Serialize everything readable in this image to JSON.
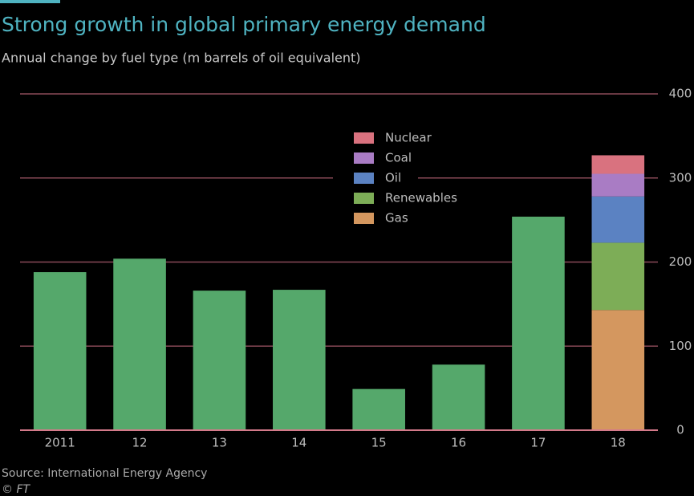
{
  "chart_data": {
    "type": "stacked-bar",
    "title": "Strong growth in global primary energy demand",
    "subtitle": "Annual change by fuel type (m barrels of oil equivalent)",
    "source": "Source: International Energy Agency",
    "credit": "© FT",
    "categories": [
      "2011",
      "12",
      "13",
      "14",
      "15",
      "16",
      "17",
      "18"
    ],
    "values": [
      188,
      204,
      166,
      167,
      49,
      78,
      254,
      null
    ],
    "color": "#55a86b",
    "series": [
      {
        "name": "Gas",
        "color": "#d4975f",
        "values": [
          null,
          null,
          null,
          null,
          null,
          null,
          null,
          143
        ]
      },
      {
        "name": "Renewables",
        "color": "#7dad57",
        "values": [
          null,
          null,
          null,
          null,
          null,
          null,
          null,
          80
        ]
      },
      {
        "name": "Oil",
        "color": "#5b82c2",
        "values": [
          null,
          null,
          null,
          null,
          null,
          null,
          null,
          55
        ]
      },
      {
        "name": "Coal",
        "color": "#a97cc4",
        "values": [
          null,
          null,
          null,
          null,
          null,
          null,
          null,
          27
        ]
      },
      {
        "name": "Nuclear",
        "color": "#d9727f",
        "values": [
          null,
          null,
          null,
          null,
          null,
          null,
          null,
          22
        ]
      }
    ],
    "ylim": [
      0,
      400
    ],
    "yticks": [
      0,
      100,
      200,
      300,
      400
    ],
    "grid": true,
    "legend": "top"
  }
}
